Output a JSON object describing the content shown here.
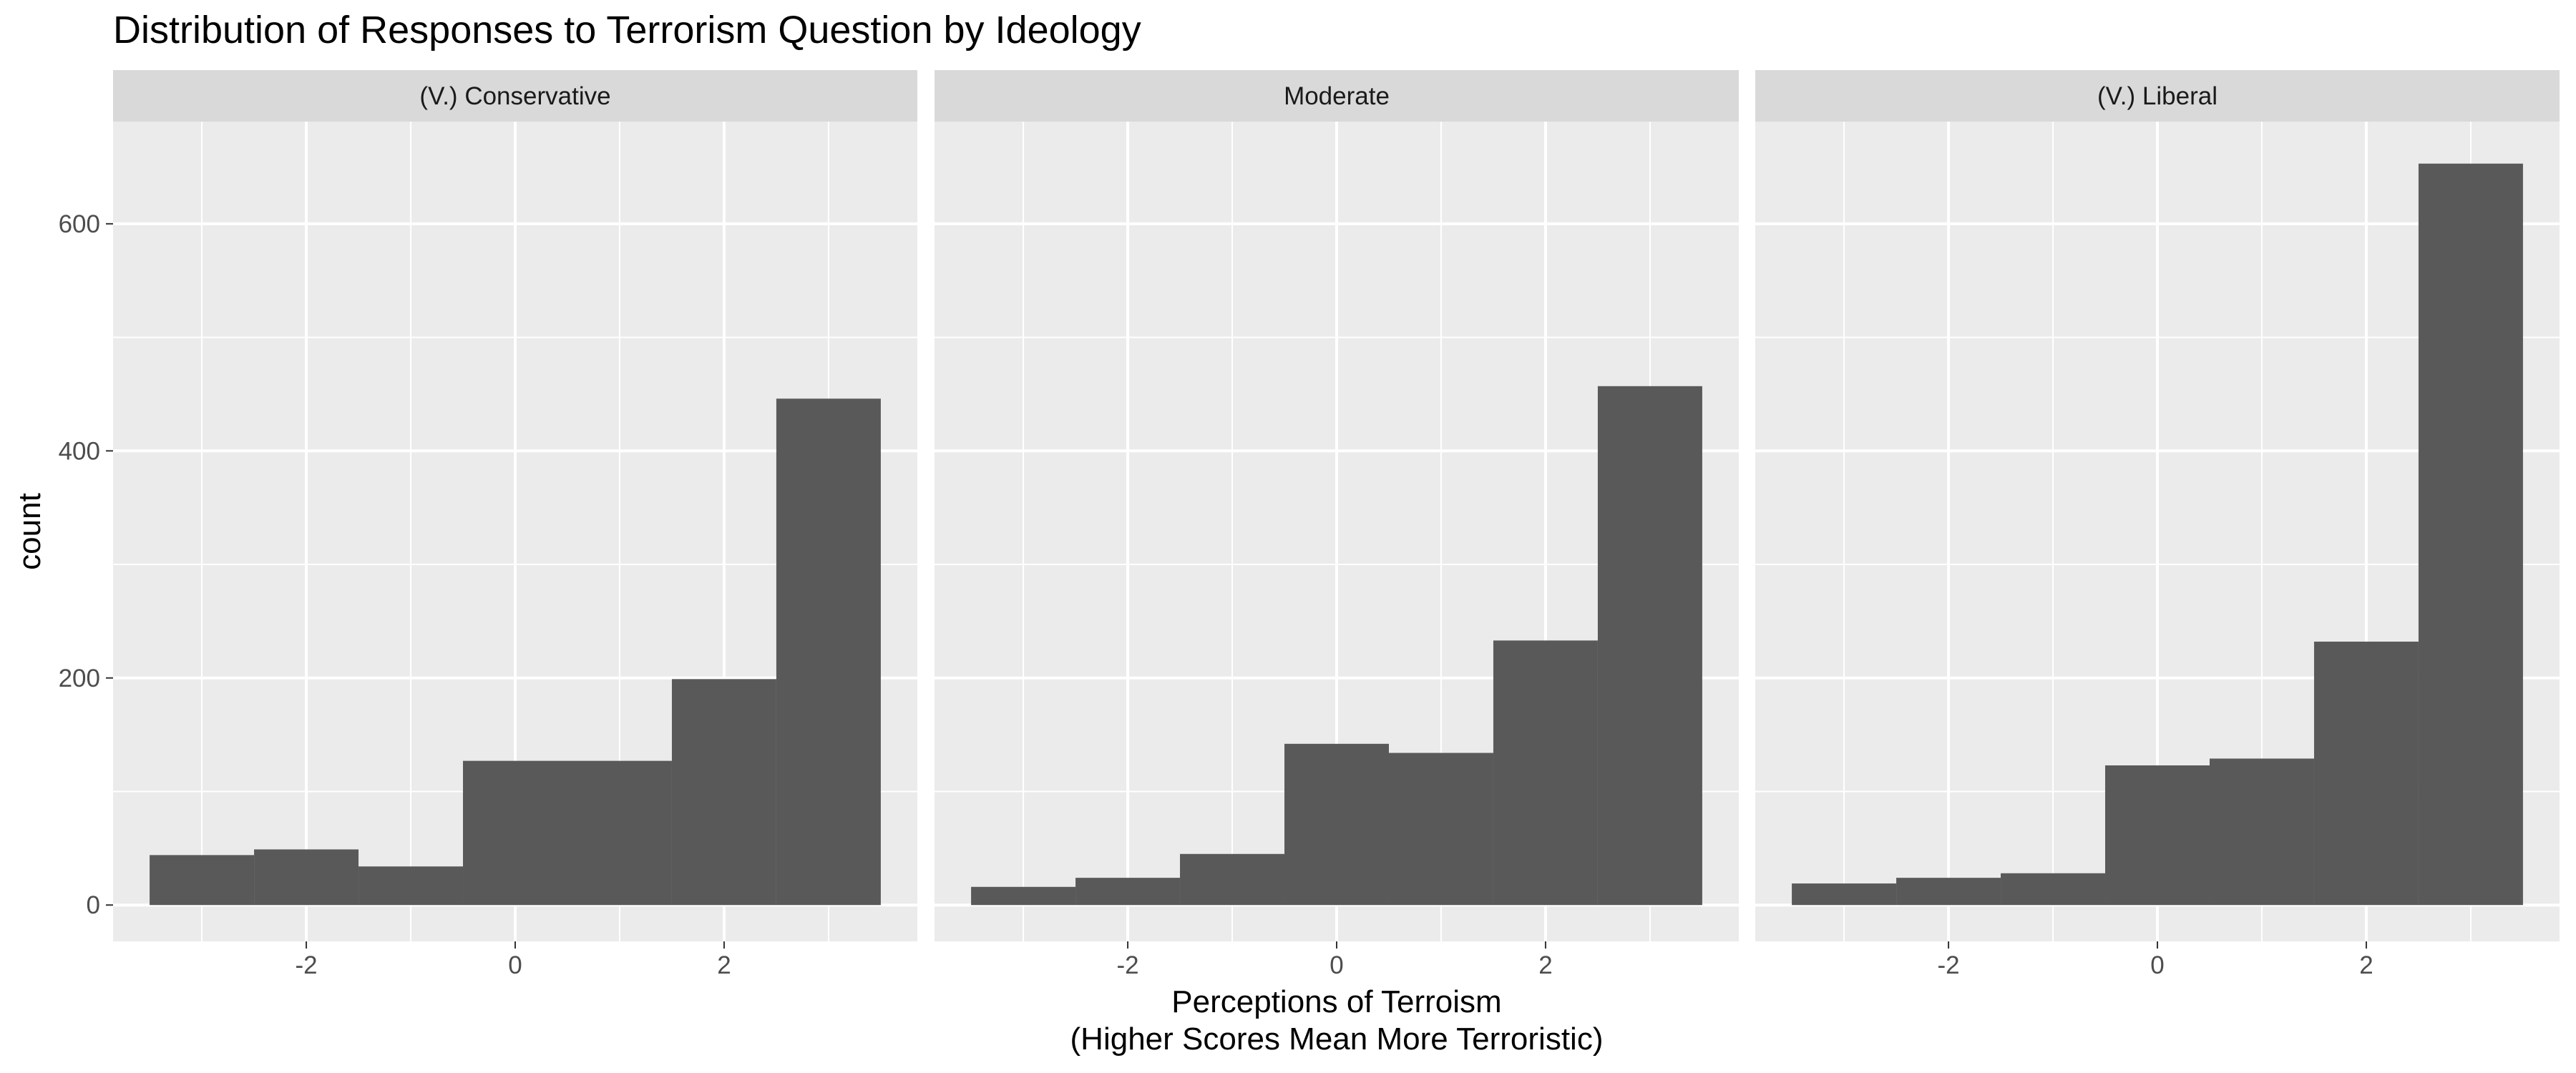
{
  "chart_data": {
    "type": "bar",
    "title": "Distribution of Responses to Terrorism Question by Ideology",
    "xlabel": "Perceptions of Terroism\n(Higher Scores Mean More Terroristic)",
    "ylabel": "count",
    "bin_centers": [
      -3,
      -2,
      -1,
      0,
      1,
      2,
      3
    ],
    "bin_width": 1,
    "xlim": [
      -3.85,
      3.85
    ],
    "ylim": [
      -32,
      690
    ],
    "x_ticks": [
      -2,
      0,
      2
    ],
    "y_ticks": [
      0,
      200,
      400,
      600
    ],
    "grid": true,
    "bar_color": "#595959",
    "panel_background": "#ebebeb",
    "strip_background": "#d9d9d9",
    "panels": [
      {
        "name": "(V.) Conservative",
        "values": [
          44,
          49,
          34,
          127,
          127,
          199,
          446
        ]
      },
      {
        "name": "Moderate",
        "values": [
          16,
          24,
          45,
          142,
          134,
          233,
          457
        ]
      },
      {
        "name": "(V.) Liberal",
        "values": [
          19,
          24,
          28,
          123,
          129,
          232,
          653
        ]
      }
    ]
  }
}
